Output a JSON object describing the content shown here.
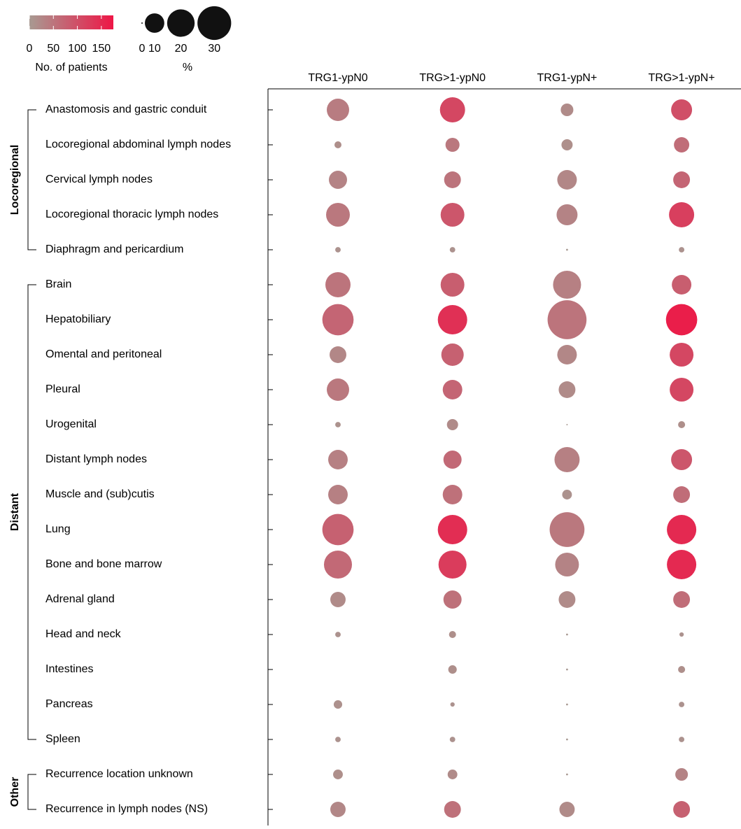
{
  "chart_data": {
    "type": "dot",
    "columns": [
      "TRG1-ypN0",
      "TRG>1-ypN0",
      "TRG1-ypN+",
      "TRG>1-ypN+"
    ],
    "groups": [
      {
        "name": "Locoregional",
        "categories": [
          "Anastomosis and gastric conduit",
          "Locoregional abdominal lymph nodes",
          "Cervical lymph nodes",
          "Locoregional thoracic lymph nodes",
          "Diaphragm and pericardium"
        ]
      },
      {
        "name": "Distant",
        "categories": [
          "Brain",
          "Hepatobiliary",
          "Omental and peritoneal",
          "Pleural",
          "Urogenital",
          "Distant lymph nodes",
          "Muscle and (sub)cutis",
          "Lung",
          "Bone and bone marrow",
          "Adrenal gland",
          "Head and neck",
          "Intestines",
          "Pancreas",
          "Spleen"
        ]
      },
      {
        "name": "Other",
        "categories": [
          "Recurrence location unknown",
          "Recurrence in lymph nodes (NS)"
        ]
      }
    ],
    "series": [
      {
        "name": "TRG1-ypN0",
        "values": [
          13.2,
          1.3,
          8.7,
          14.9,
          0.8,
          16.7,
          25.8,
          7.4,
          13.2,
          0.8,
          10.1,
          10.1,
          25.8,
          20.7,
          6.2,
          0.8,
          null,
          1.9,
          0.8,
          2.5,
          6.2
        ],
        "counts": [
          40,
          15,
          30,
          45,
          10,
          50,
          70,
          25,
          45,
          10,
          35,
          35,
          75,
          65,
          20,
          10,
          null,
          12,
          10,
          15,
          25
        ]
      },
      {
        "name": "TRG>1-ypN0",
        "values": [
          16.7,
          5.2,
          7.4,
          14.9,
          0.8,
          14.9,
          22.8,
          13.2,
          10.1,
          3.3,
          8.7,
          10.1,
          22.8,
          20.7,
          8.7,
          1.3,
          1.9,
          0.5,
          0.8,
          2.5,
          7.4
        ],
        "counts": [
          110,
          45,
          50,
          90,
          10,
          80,
          140,
          75,
          70,
          20,
          65,
          55,
          145,
          125,
          55,
          15,
          15,
          10,
          10,
          20,
          55
        ]
      },
      {
        "name": "TRG1-ypN+",
        "values": [
          4.2,
          3.3,
          10.1,
          11.6,
          0.1,
          20.7,
          40.0,
          10.1,
          7.4,
          0.05,
          16.7,
          2.5,
          32.0,
          14.9,
          7.4,
          0.1,
          0.1,
          0.1,
          0.1,
          0.1,
          6.2
        ],
        "counts": [
          20,
          15,
          25,
          30,
          1,
          35,
          50,
          25,
          20,
          1,
          35,
          10,
          45,
          30,
          20,
          1,
          1,
          1,
          1,
          1,
          20
        ]
      },
      {
        "name": "TRG>1-ypN+",
        "values": [
          11.6,
          6.2,
          7.4,
          16.7,
          0.8,
          10.1,
          25.8,
          14.9,
          14.9,
          1.3,
          11.6,
          7.4,
          22.8,
          22.8,
          7.4,
          0.5,
          1.3,
          0.8,
          0.8,
          4.2,
          7.4
        ],
        "counts": [
          100,
          60,
          70,
          120,
          10,
          80,
          165,
          110,
          110,
          15,
          90,
          60,
          150,
          150,
          60,
          10,
          15,
          10,
          10,
          30,
          75
        ]
      }
    ],
    "color_legend": {
      "title": "No. of patients",
      "lim": [
        0,
        175
      ],
      "ticks": [
        0,
        50,
        100,
        150
      ],
      "colors": [
        "#a89a92",
        "#ee1646"
      ]
    },
    "size_legend": {
      "title": "%",
      "ticks": [
        0,
        10,
        20,
        30
      ],
      "color": "#111111"
    }
  }
}
